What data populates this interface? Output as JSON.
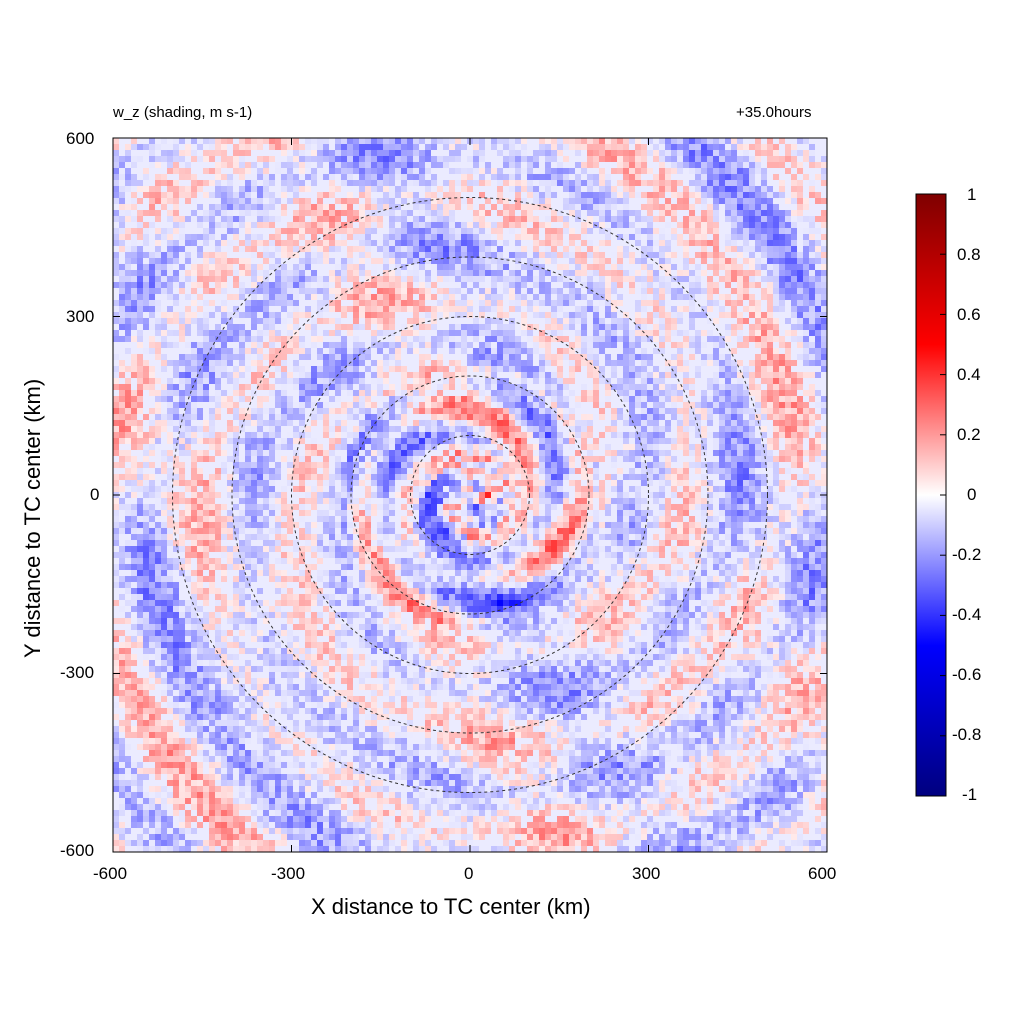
{
  "chart_data": {
    "type": "heatmap",
    "title_left": "w_z (shading, m s-1)",
    "title_right": "+35.0hours",
    "xlabel": "X distance to TC center (km)",
    "ylabel": "Y distance to TC center (km)",
    "xlim": [
      -600,
      600
    ],
    "ylim": [
      -600,
      600
    ],
    "xticks": [
      "-600",
      "-300",
      "0",
      "300",
      "600"
    ],
    "yticks": [
      "-600",
      "-300",
      "0",
      "300",
      "600"
    ],
    "range_rings_km": [
      100,
      200,
      300,
      400,
      500
    ],
    "colorbar": {
      "range": [
        -1,
        1
      ],
      "ticks": [
        "1",
        "0.8",
        "0.6",
        "0.4",
        "0.2",
        "0",
        "-0.2",
        "-0.4",
        "-0.6",
        "-0.8",
        "-1"
      ],
      "colors": [
        "#00007f",
        "#0000ff",
        "#ffffff",
        "#ff0000",
        "#7f0000"
      ]
    }
  }
}
